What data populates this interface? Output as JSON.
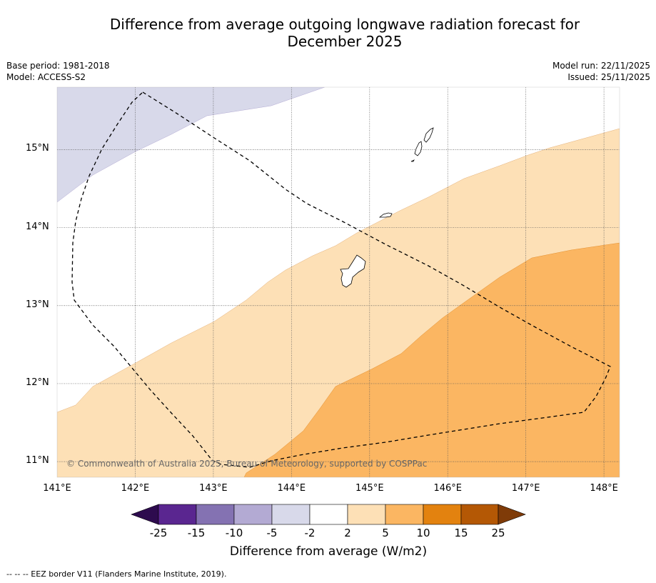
{
  "title_line1": "Difference from average outgoing longwave radiation forecast for",
  "title_line2": "December 2025",
  "base_period": "Base period: 1981-2018",
  "model": "Model: ACCESS-S2",
  "model_run": "Model run: 22/11/2025",
  "issued": "Issued: 25/11/2025",
  "copyright": "© Commonwealth of Australia 2025, Bureau of Meteorology, supported by COSPPac",
  "footer": "--  --  -- EEZ border V11 (Flanders Marine Institute, 2019).",
  "map": {
    "lon_min": 141.0,
    "lon_max": 148.2,
    "lat_min": 10.8,
    "lat_max": 15.8,
    "lat_ticks": [
      {
        "value": 11,
        "label": "11°N"
      },
      {
        "value": 12,
        "label": "12°N"
      },
      {
        "value": 13,
        "label": "13°N"
      },
      {
        "value": 14,
        "label": "14°N"
      },
      {
        "value": 15,
        "label": "15°N"
      }
    ],
    "lon_ticks": [
      {
        "value": 141,
        "label": "141°E"
      },
      {
        "value": 142,
        "label": "142°E"
      },
      {
        "value": 143,
        "label": "143°E"
      },
      {
        "value": 144,
        "label": "144°E"
      },
      {
        "value": 145,
        "label": "145°E"
      },
      {
        "value": 146,
        "label": "146°E"
      },
      {
        "value": 147,
        "label": "147°E"
      },
      {
        "value": 148,
        "label": "148°E"
      }
    ]
  },
  "colorbar": {
    "label": "Difference from average (W/m2)",
    "ticks": [
      "-25",
      "-15",
      "-10",
      "-5",
      "-2",
      "2",
      "5",
      "10",
      "15",
      "25"
    ],
    "colors": [
      "#2d0b4e",
      "#5a2690",
      "#8472b2",
      "#b3aad3",
      "#d8d9ea",
      "#ffffff",
      "#fde0b6",
      "#fbb662",
      "#e3820f",
      "#b45805",
      "#7f3b08"
    ]
  },
  "legend_colors": {
    "minus5_minus2": "#d8d9ea",
    "plus2_plus5": "#fde0b6",
    "plus5_plus10": "#fbb662"
  }
}
